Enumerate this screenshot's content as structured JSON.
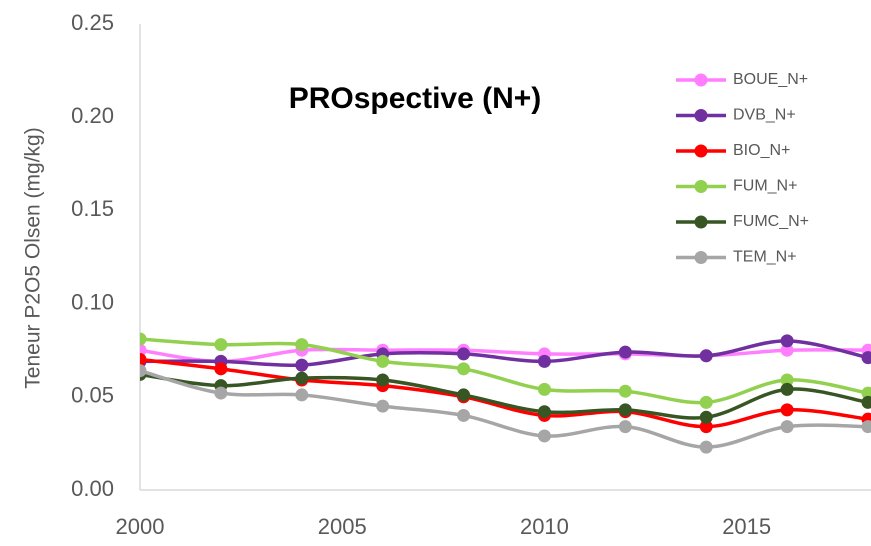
{
  "chart_data": {
    "type": "line",
    "title": "PROspective (N+)",
    "y_label": "Teneur P2O5 Olsen (mg/kg)",
    "x": [
      2000,
      2002,
      2004,
      2006,
      2008,
      2010,
      2012,
      2014,
      2016,
      2018
    ],
    "series": [
      {
        "name": "BOUE_N+",
        "color": "#ff7fff",
        "values": [
          0.075,
          0.069,
          0.075,
          0.075,
          0.075,
          0.073,
          0.073,
          0.072,
          0.075,
          0.075
        ]
      },
      {
        "name": "DVB_N+",
        "color": "#7030a0",
        "values": [
          0.069,
          0.069,
          0.067,
          0.073,
          0.073,
          0.069,
          0.074,
          0.072,
          0.08,
          0.071
        ]
      },
      {
        "name": "BIO_N+",
        "color": "#ff0000",
        "values": [
          0.07,
          0.065,
          0.059,
          0.056,
          0.05,
          0.04,
          0.042,
          0.034,
          0.043,
          0.038
        ]
      },
      {
        "name": "FUM_N+",
        "color": "#92d050",
        "values": [
          0.081,
          0.078,
          0.078,
          0.069,
          0.065,
          0.054,
          0.053,
          0.047,
          0.059,
          0.052
        ]
      },
      {
        "name": "FUMC_N+",
        "color": "#375623",
        "values": [
          0.062,
          0.056,
          0.06,
          0.059,
          0.051,
          0.042,
          0.043,
          0.039,
          0.054,
          0.047
        ]
      },
      {
        "name": "TEM_N+",
        "color": "#a6a6a6",
        "values": [
          0.064,
          0.052,
          0.051,
          0.045,
          0.04,
          0.029,
          0.034,
          0.023,
          0.034,
          0.034
        ]
      }
    ],
    "xlim": [
      2000,
      2018
    ],
    "xticks": [
      2000,
      2005,
      2010,
      2015
    ],
    "ylim": [
      0,
      0.25
    ],
    "yticks": [
      {
        "value": 0,
        "label": "0.00"
      },
      {
        "value": 0.05,
        "label": "0.05"
      },
      {
        "value": 0.1,
        "label": "0.10"
      },
      {
        "value": 0.15,
        "label": "0.15"
      },
      {
        "value": 0.2,
        "label": "0.20"
      },
      {
        "value": 0.25,
        "label": "0.25"
      }
    ],
    "grid": false,
    "legend": "top-right"
  }
}
